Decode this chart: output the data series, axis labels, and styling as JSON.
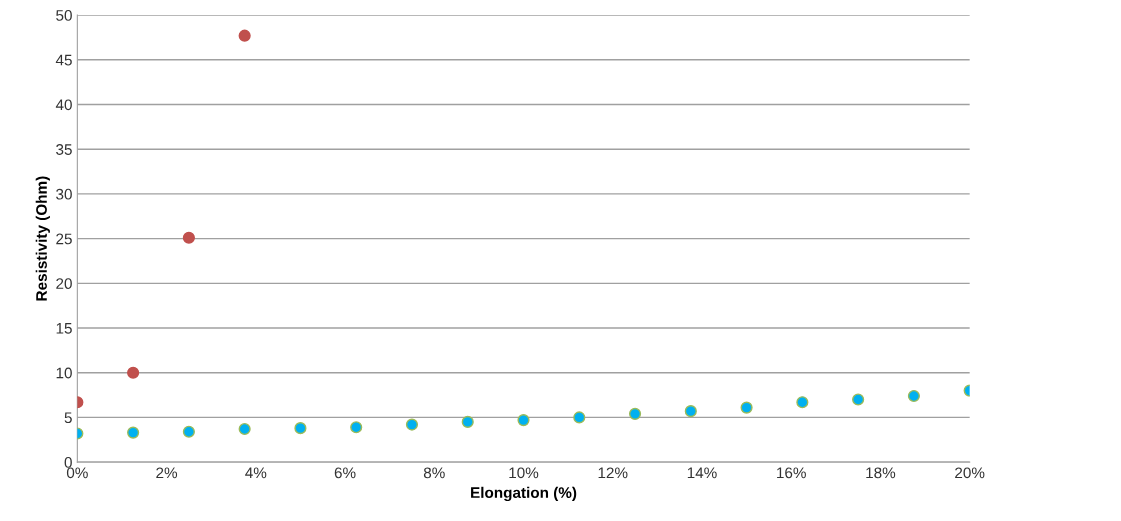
{
  "chart_data": {
    "type": "scatter",
    "xlabel": "Elongation (%)",
    "ylabel": "Resistivity (Ohm)",
    "series": [
      {
        "color": "#c0504d",
        "x": [
          0,
          1.25,
          2.5,
          3.75
        ],
        "values": [
          6.7,
          10.0,
          25.1,
          47.7
        ]
      },
      {
        "color": "#00b0f0",
        "x": [
          0,
          1.25,
          2.5,
          3.75,
          5,
          6.25,
          7.5,
          8.75,
          10,
          11.25,
          12.5,
          13.75,
          15,
          16.25,
          17.5,
          18.75,
          20
        ],
        "values": [
          3.2,
          3.3,
          3.4,
          3.7,
          3.8,
          3.9,
          4.2,
          4.5,
          4.7,
          5.0,
          5.4,
          5.7,
          6.1,
          6.7,
          7.0,
          7.4,
          8.0
        ]
      }
    ],
    "xlim": [
      0,
      20
    ],
    "ylim": [
      0,
      50
    ],
    "xticks": [
      {
        "value": 0,
        "label": "0%"
      },
      {
        "value": 2,
        "label": "2%"
      },
      {
        "value": 4,
        "label": "4%"
      },
      {
        "value": 6,
        "label": "6%"
      },
      {
        "value": 8,
        "label": "8%"
      },
      {
        "value": 10,
        "label": "10%"
      },
      {
        "value": 12,
        "label": "12%"
      },
      {
        "value": 14,
        "label": "14%"
      },
      {
        "value": 16,
        "label": "16%"
      },
      {
        "value": 18,
        "label": "18%"
      },
      {
        "value": 20,
        "label": "20%"
      }
    ],
    "yticks": [
      0,
      5,
      10,
      15,
      20,
      25,
      30,
      35,
      40,
      45,
      50
    ],
    "grid": "y",
    "marker": "circle"
  }
}
